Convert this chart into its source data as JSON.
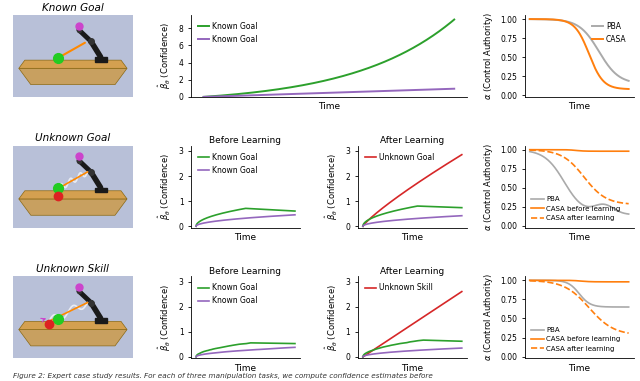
{
  "row1": {
    "title": "Known Goal",
    "conf_yticks": [
      0,
      2,
      4,
      6,
      8
    ],
    "conf_ylim": [
      0,
      9.5
    ],
    "auth_yticks": [
      0.0,
      0.25,
      0.5,
      0.75,
      1.0
    ],
    "auth_ylim": [
      -0.02,
      1.05
    ]
  },
  "row2": {
    "title": "Unknown Goal",
    "conf_yticks": [
      0,
      1,
      2,
      3
    ],
    "conf_ylim": [
      -0.05,
      3.2
    ],
    "auth_yticks": [
      0.0,
      0.25,
      0.5,
      0.75,
      1.0
    ],
    "auth_ylim": [
      -0.02,
      1.05
    ]
  },
  "row3": {
    "title": "Unknown Skill",
    "conf_yticks": [
      0,
      1,
      2,
      3
    ],
    "conf_ylim": [
      -0.05,
      3.2
    ],
    "auth_yticks": [
      0.0,
      0.25,
      0.5,
      0.75,
      1.0
    ],
    "auth_ylim": [
      -0.02,
      1.05
    ]
  },
  "caption": "Figure 2: Expert case study results. For each of three manipulation tasks, we compute confidence estimates before",
  "colors": {
    "green": "#2ca02c",
    "purple": "#9467bd",
    "red": "#d62728",
    "orange": "#ff7f0e",
    "gray": "#aaaaaa",
    "img_bg": "#b8c0d8",
    "table": "#c8a060",
    "arm": "#1a1a1a"
  }
}
